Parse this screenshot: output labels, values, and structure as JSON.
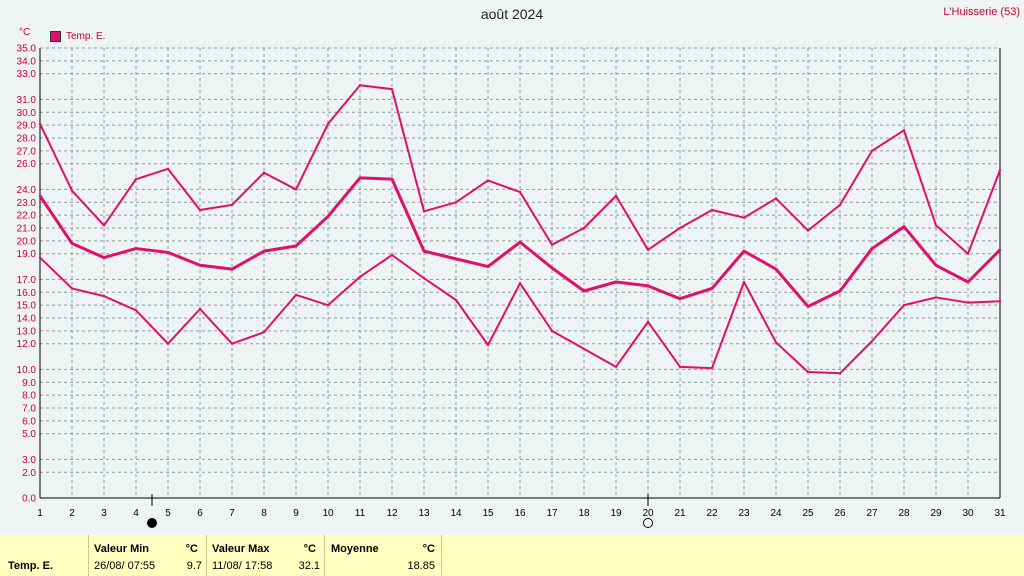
{
  "header": {
    "title": "août 2024",
    "station": "L'Huisserie (53)",
    "unit": "°C"
  },
  "legend": {
    "label": "Temp. E."
  },
  "colors": {
    "series": "#e0106a",
    "grid": "#8a9a9a",
    "background": "#eef4f4",
    "footer": "#ffffc0"
  },
  "moon_phases": [
    {
      "day": 4.5,
      "phase": "new-moon"
    },
    {
      "day": 20,
      "phase": "full-moon"
    }
  ],
  "chart_data": {
    "type": "line",
    "title": "août 2024",
    "ylabel": "°C",
    "xlim": [
      1,
      31
    ],
    "ylim": [
      0,
      35
    ],
    "grid": true,
    "legend_placement": "top-left",
    "x": [
      1,
      2,
      3,
      4,
      5,
      6,
      7,
      8,
      9,
      10,
      11,
      12,
      13,
      14,
      15,
      16,
      17,
      18,
      19,
      20,
      21,
      22,
      23,
      24,
      25,
      26,
      27,
      28,
      29,
      30,
      31
    ],
    "y_ticks": [
      0.0,
      2.0,
      3.0,
      5.0,
      6.0,
      7.0,
      8.0,
      9.0,
      10.0,
      12.0,
      13.0,
      14.0,
      15.0,
      16.0,
      17.0,
      19.0,
      20.0,
      21.0,
      22.0,
      23.0,
      24.0,
      26.0,
      27.0,
      28.0,
      29.0,
      30.0,
      31.0,
      33.0,
      34.0,
      35.0
    ],
    "series": [
      {
        "role": "max",
        "values": [
          29.1,
          23.9,
          21.2,
          24.8,
          25.6,
          22.4,
          22.8,
          25.3,
          24.0,
          29.1,
          32.1,
          31.8,
          22.3,
          23.0,
          24.7,
          23.8,
          19.7,
          21.0,
          23.5,
          19.3,
          21.0,
          22.4,
          21.8,
          23.3,
          20.8,
          22.8,
          27.0,
          28.6,
          21.2,
          19.0,
          25.5
        ]
      },
      {
        "role": "mean",
        "values": [
          23.5,
          19.8,
          18.7,
          19.4,
          19.1,
          18.1,
          17.8,
          19.2,
          19.6,
          21.9,
          24.9,
          24.8,
          19.2,
          18.6,
          18.0,
          19.9,
          17.9,
          16.1,
          16.8,
          16.5,
          15.5,
          16.3,
          19.2,
          17.8,
          14.9,
          16.1,
          19.4,
          21.1,
          18.1,
          16.8,
          19.3
        ]
      },
      {
        "role": "min",
        "values": [
          18.7,
          16.3,
          15.7,
          14.6,
          12.0,
          14.7,
          12.0,
          12.9,
          15.8,
          15.0,
          17.2,
          18.9,
          17.1,
          15.4,
          11.9,
          16.7,
          13.0,
          11.6,
          10.2,
          13.7,
          10.2,
          10.1,
          16.8,
          12.1,
          9.8,
          9.7,
          12.2,
          15.0,
          15.6,
          15.2,
          15.3
        ]
      }
    ]
  },
  "footer": {
    "row_label": "Temp. E.",
    "min": {
      "header": "Valeur Min",
      "unit": "°C",
      "datetime": "26/08/  07:55",
      "value": "9.7"
    },
    "max": {
      "header": "Valeur Max",
      "unit": "°C",
      "datetime": "11/08/  17:58",
      "value": "32.1"
    },
    "mean": {
      "header": "Moyenne",
      "unit": "°C",
      "value": "18.85"
    }
  }
}
